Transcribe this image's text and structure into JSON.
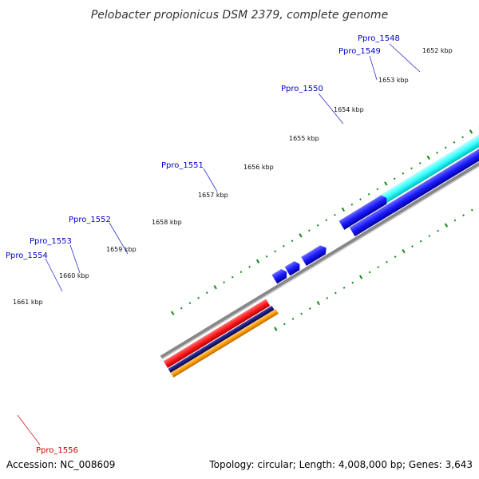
{
  "title": "Pelobacter propionicus DSM 2379, complete genome",
  "footer": {
    "accession": "Accession: NC_008609",
    "summary": "Topology: circular; Length: 4,008,000 bp; Genes: 3,643"
  },
  "kbp_labels": [
    "1652 kbp",
    "1653 kbp",
    "1654 kbp",
    "1655 kbp",
    "1656 kbp",
    "1657 kbp",
    "1658 kbp",
    "1659 kbp",
    "1660 kbp",
    "1661 kbp"
  ],
  "gene_labels": [
    {
      "text": "Ppro_1548",
      "color": "#0000cc"
    },
    {
      "text": "Ppro_1549",
      "color": "#0000cc"
    },
    {
      "text": "Ppro_1550",
      "color": "#0000cc"
    },
    {
      "text": "Ppro_1551",
      "color": "#0000cc"
    },
    {
      "text": "Ppro_1552",
      "color": "#0000cc"
    },
    {
      "text": "Ppro_1553",
      "color": "#0000cc"
    },
    {
      "text": "Ppro_1554",
      "color": "#0000cc"
    },
    {
      "text": "Ppro_1556",
      "color": "#cc0000"
    }
  ],
  "colors": {
    "backbone": "#888888",
    "gene_blue": "#1a1aff",
    "gene_cyan": "#33ffff",
    "gene_steel": "#3f7fa8",
    "gene_gray": "#c8c8c8",
    "gene_red": "#ff1a1a",
    "gene_navy": "#1a1a7a",
    "gene_orange": "#ff9900",
    "tick_green": "#118811"
  }
}
